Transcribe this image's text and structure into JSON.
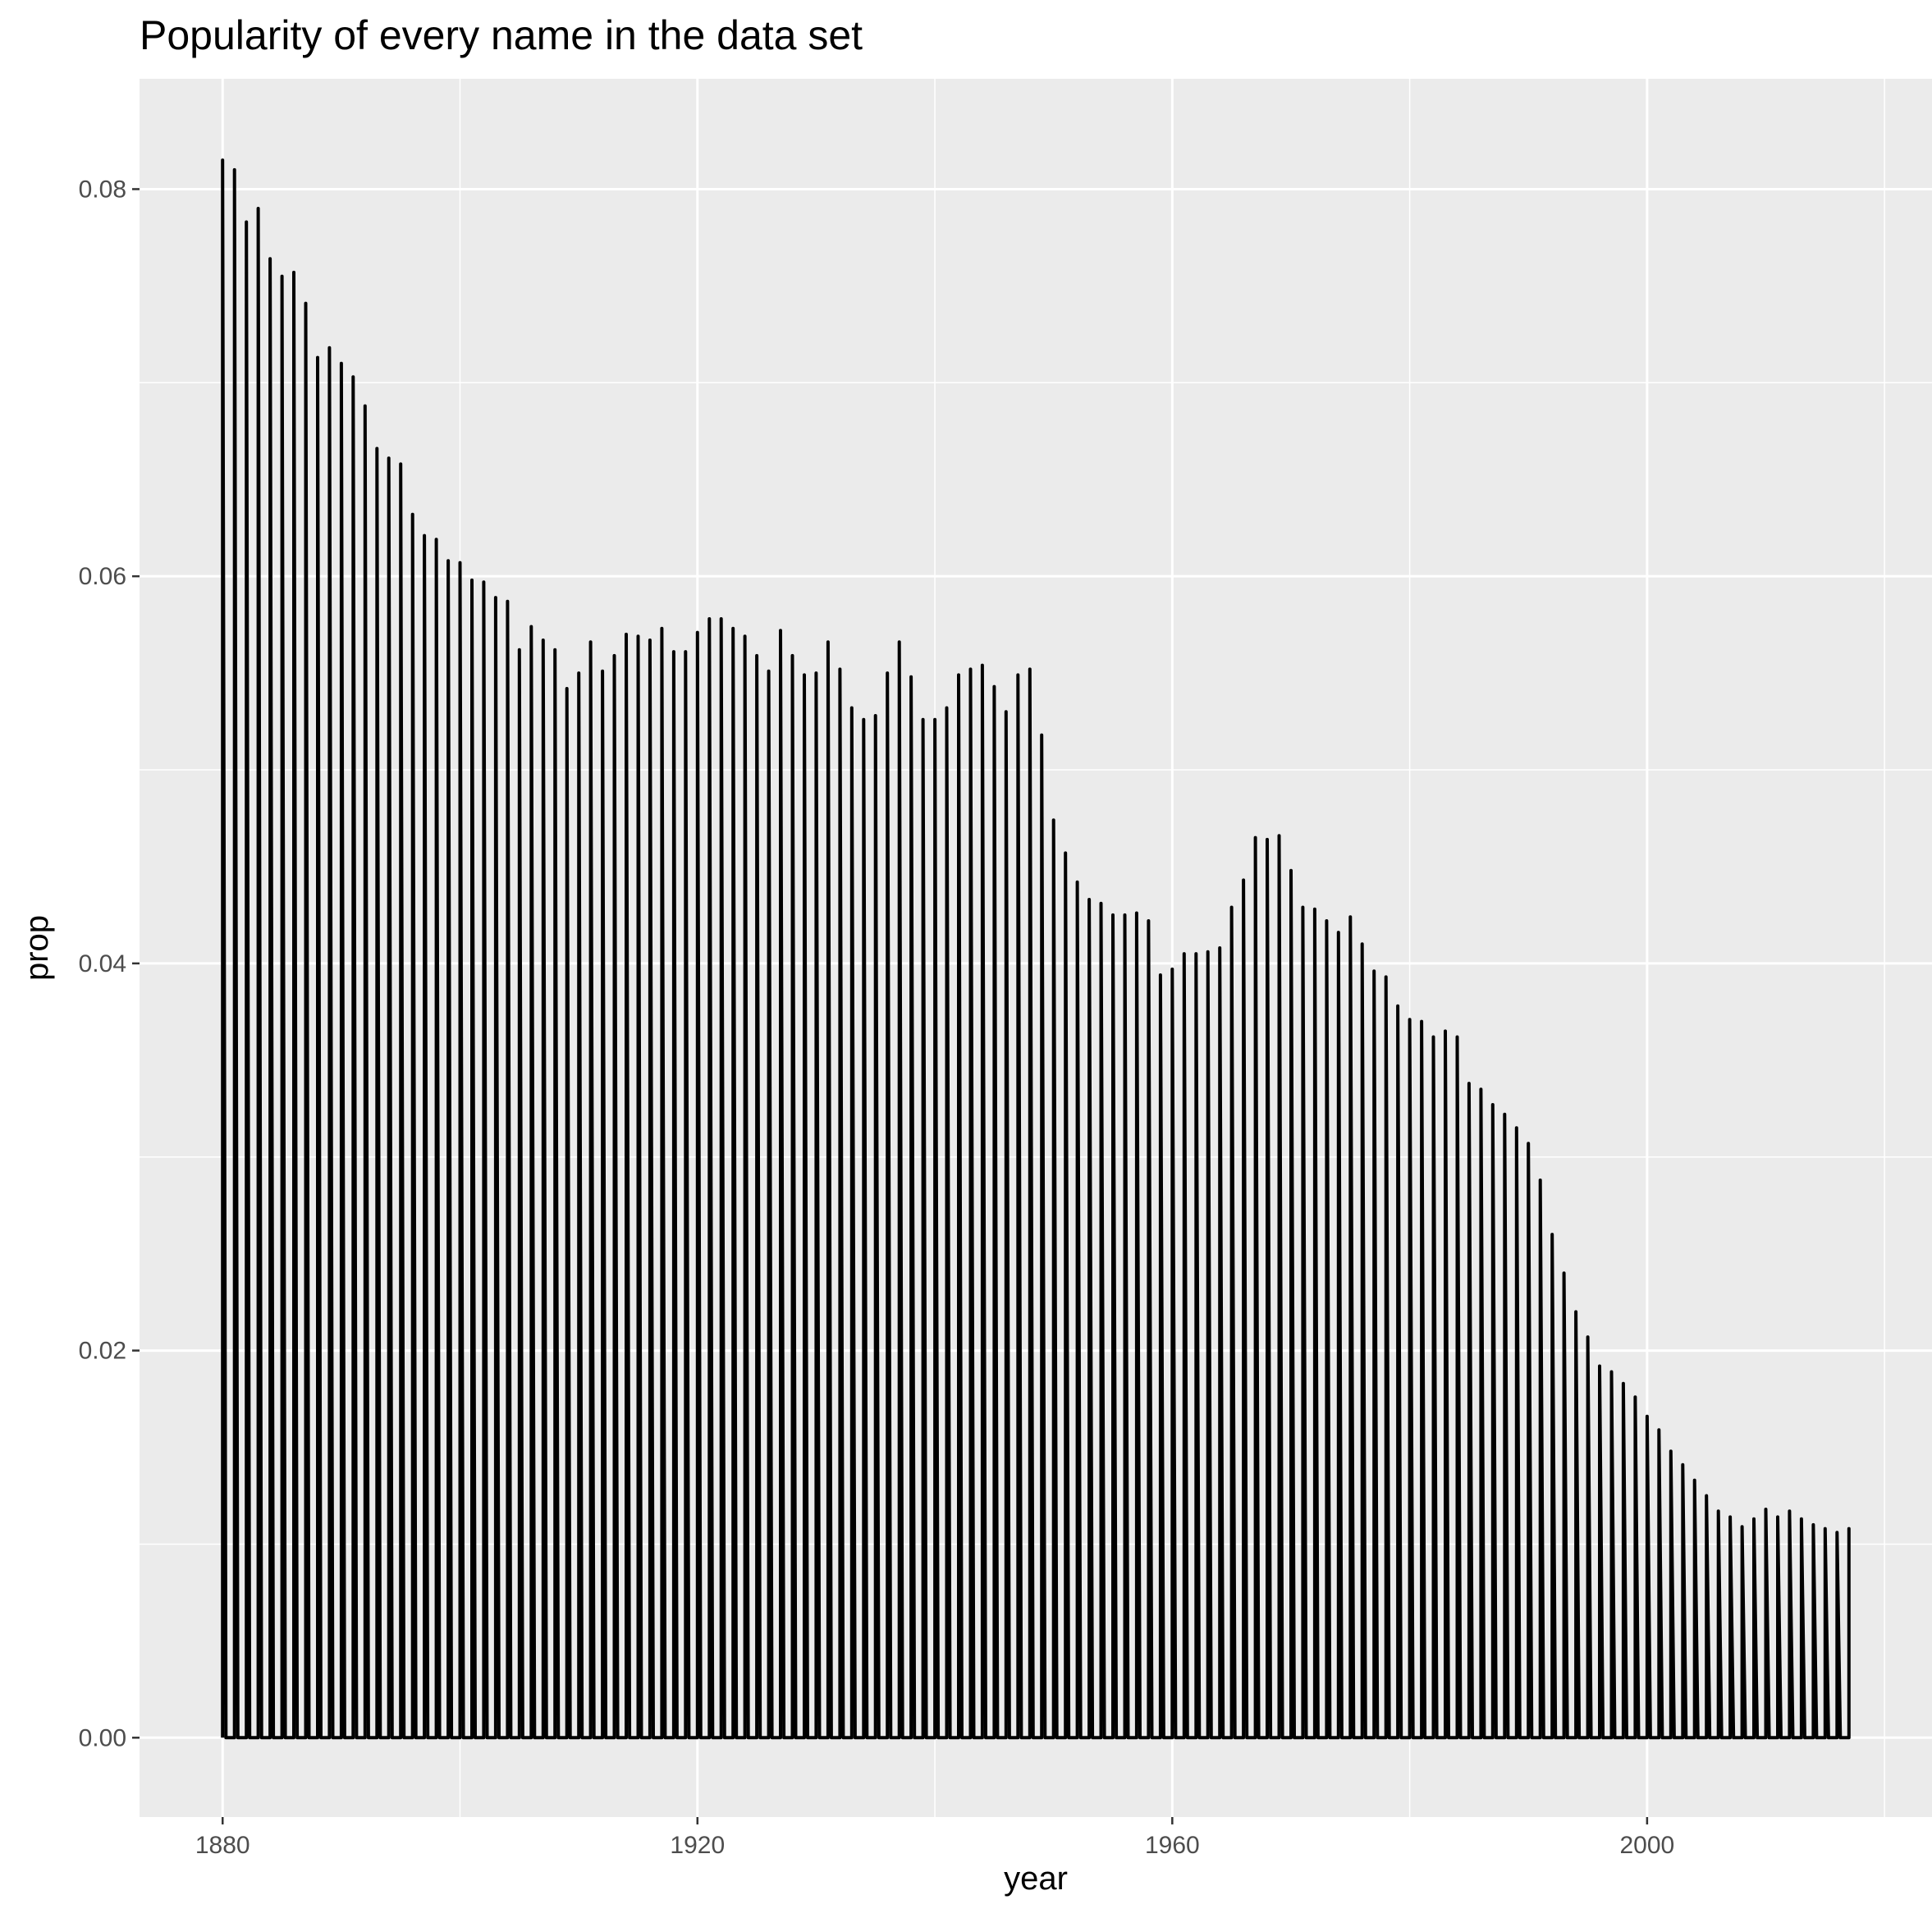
{
  "chart_data": {
    "type": "line",
    "title": "Popularity of every name in the data set",
    "xlabel": "year",
    "ylabel": "prop",
    "xlim": [
      1873,
      2024
    ],
    "ylim": [
      -0.0041,
      0.0857
    ],
    "x_ticks": [
      1880,
      1920,
      1960,
      2000
    ],
    "y_ticks": [
      0.0,
      0.02,
      0.04,
      0.06,
      0.08
    ],
    "y_tick_labels": [
      "0.00",
      "0.02",
      "0.04",
      "0.06",
      "0.08"
    ],
    "grid": true,
    "panel_background": "#ebebeb",
    "grid_color": "#ffffff",
    "line_color": "#000000",
    "legend": "none",
    "description_note": "",
    "series": [
      {
        "x": [
          1880,
          1881,
          1882,
          1883,
          1884,
          1885,
          1886,
          1887,
          1888,
          1889,
          1890,
          1891,
          1892,
          1893,
          1894,
          1895,
          1896,
          1897,
          1898,
          1899,
          1900,
          1901,
          1902,
          1903,
          1904,
          1905,
          1906,
          1907,
          1908,
          1909,
          1910,
          1911,
          1912,
          1913,
          1914,
          1915,
          1916,
          1917,
          1918,
          1919,
          1920,
          1921,
          1922,
          1923,
          1924,
          1925,
          1926,
          1927,
          1928,
          1929,
          1930,
          1931,
          1932,
          1933,
          1934,
          1935,
          1936,
          1937,
          1938,
          1939,
          1940,
          1941,
          1942,
          1943,
          1944,
          1945,
          1946,
          1947,
          1948,
          1949,
          1950,
          1951,
          1952,
          1953,
          1954,
          1955,
          1956,
          1957,
          1958,
          1959,
          1960,
          1961,
          1962,
          1963,
          1964,
          1965,
          1966,
          1967,
          1968,
          1969,
          1970,
          1971,
          1972,
          1973,
          1974,
          1975,
          1976,
          1977,
          1978,
          1979,
          1980,
          1981,
          1982,
          1983,
          1984,
          1985,
          1986,
          1987,
          1988,
          1989,
          1990,
          1991,
          1992,
          1993,
          1994,
          1995,
          1996,
          1997,
          1998,
          1999,
          2000,
          2001,
          2002,
          2003,
          2004,
          2005,
          2006,
          2007,
          2008,
          2009,
          2010,
          2011,
          2012,
          2013,
          2014,
          2015,
          2016,
          2017
        ],
        "y": [
          0.0815,
          0.081,
          0.0783,
          0.079,
          0.0764,
          0.0755,
          0.0757,
          0.0741,
          0.0713,
          0.0718,
          0.071,
          0.0703,
          0.0688,
          0.0666,
          0.0661,
          0.0658,
          0.0632,
          0.0621,
          0.0619,
          0.0608,
          0.0607,
          0.0598,
          0.0597,
          0.0589,
          0.0587,
          0.0562,
          0.0574,
          0.0567,
          0.0562,
          0.0542,
          0.055,
          0.0566,
          0.0551,
          0.0559,
          0.057,
          0.0569,
          0.0567,
          0.0573,
          0.0561,
          0.0561,
          0.0571,
          0.0578,
          0.0578,
          0.0573,
          0.0569,
          0.0559,
          0.0551,
          0.0572,
          0.0559,
          0.0549,
          0.055,
          0.0566,
          0.0552,
          0.0532,
          0.0526,
          0.0528,
          0.055,
          0.0566,
          0.0548,
          0.0526,
          0.0526,
          0.0532,
          0.0549,
          0.0552,
          0.0554,
          0.0543,
          0.053,
          0.0549,
          0.0552,
          0.0518,
          0.0474,
          0.0457,
          0.0442,
          0.0433,
          0.0431,
          0.0425,
          0.0425,
          0.0426,
          0.0422,
          0.0394,
          0.0397,
          0.0405,
          0.0405,
          0.0406,
          0.0408,
          0.0429,
          0.0443,
          0.0465,
          0.0464,
          0.0466,
          0.0448,
          0.0429,
          0.0428,
          0.0422,
          0.0416,
          0.0424,
          0.041,
          0.0396,
          0.0393,
          0.0378,
          0.0371,
          0.037,
          0.0362,
          0.0365,
          0.0362,
          0.0338,
          0.0335,
          0.0327,
          0.0322,
          0.0315,
          0.0307,
          0.0288,
          0.026,
          0.024,
          0.022,
          0.0207,
          0.0192,
          0.0189,
          0.0183,
          0.0176,
          0.0166,
          0.0159,
          0.0148,
          0.0141,
          0.0133,
          0.0125,
          0.0117,
          0.0114,
          0.0109,
          0.0113,
          0.0118,
          0.0114,
          0.0117,
          0.0113,
          0.011,
          0.0108,
          0.0106,
          0.0108
        ]
      }
    ]
  }
}
